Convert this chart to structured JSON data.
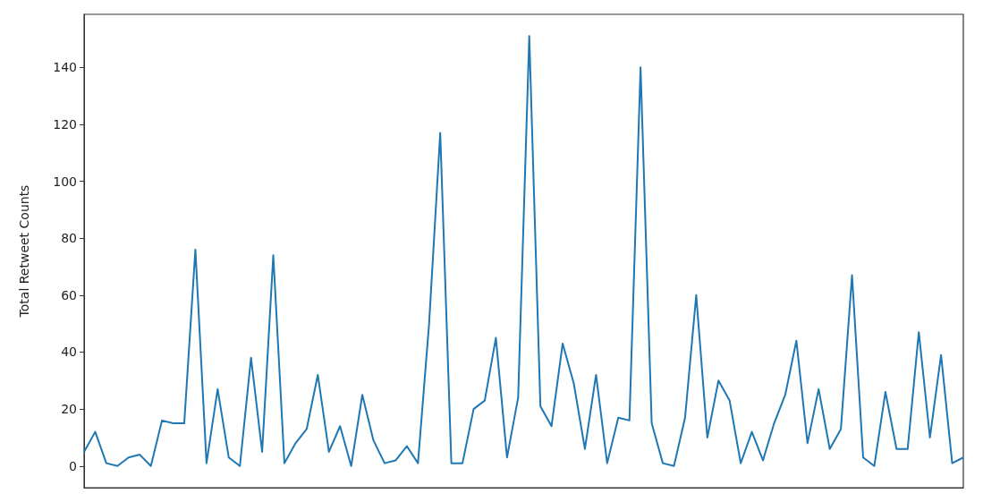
{
  "chart_data": {
    "type": "line",
    "ylabel": "Total Retweet Counts",
    "ylim": [
      -7.6,
      158.6
    ],
    "yticks": [
      0,
      20,
      40,
      60,
      80,
      100,
      120,
      140
    ],
    "grid": false,
    "marker": "none",
    "line_style": "solid",
    "categories": [
      null,
      null,
      null,
      null,
      null,
      null,
      null,
      null,
      null,
      null,
      null,
      null,
      null,
      null,
      null,
      null,
      null,
      null,
      null,
      null,
      null,
      null,
      null,
      null,
      null,
      null,
      null,
      null,
      null,
      null,
      null,
      null,
      null,
      null,
      null,
      null,
      null,
      null,
      null,
      null,
      null,
      null,
      null,
      null,
      null,
      null,
      null,
      null,
      null,
      null,
      null,
      null,
      null,
      null,
      null,
      null,
      null,
      null,
      null,
      null,
      null,
      null,
      null,
      null,
      null,
      null,
      null,
      null,
      null,
      null,
      null,
      null,
      null,
      null,
      null,
      null,
      null,
      null,
      null,
      null
    ],
    "series": [
      {
        "color": "#1f77b4",
        "values": [
          5,
          12,
          1,
          0,
          3,
          4,
          0,
          16,
          15,
          15,
          76,
          1,
          27,
          3,
          0,
          38,
          5,
          74,
          1,
          8,
          13,
          32,
          5,
          14,
          0,
          25,
          9,
          1,
          2,
          7,
          1,
          50,
          117,
          1,
          1,
          20,
          23,
          45,
          3,
          24,
          151,
          21,
          14,
          43,
          29,
          6,
          32,
          1,
          17,
          16,
          140,
          15,
          1,
          0,
          17,
          60,
          10,
          30,
          23,
          1,
          12,
          2,
          15,
          25,
          44,
          8,
          27,
          6,
          13,
          67,
          3,
          0,
          26,
          6,
          6,
          47,
          10,
          39,
          1,
          3
        ]
      }
    ]
  }
}
